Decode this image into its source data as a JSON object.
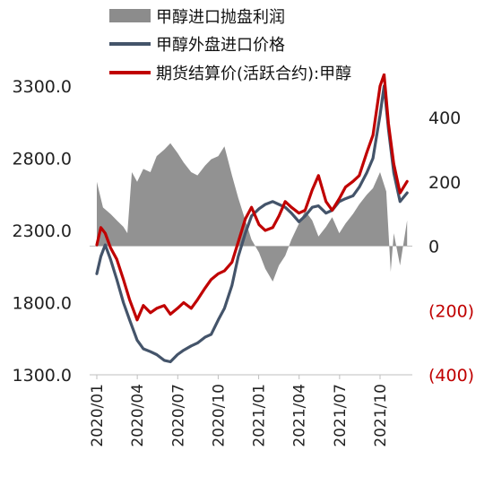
{
  "chart_data": {
    "type": "line",
    "title": "",
    "legend": {
      "position": "top",
      "entries": [
        "甲醇进口抛盘利润",
        "甲醇外盘进口价格",
        "期货结算价(活跃合约):甲醇"
      ]
    },
    "x_ticks": [
      "2020/01",
      "2020/04",
      "2020/07",
      "2020/10",
      "2021/01",
      "2021/04",
      "2021/07",
      "2021/10"
    ],
    "y_left": {
      "ticks": [
        "3300.0",
        "2800.0",
        "2300.0",
        "1800.0",
        "1300.0"
      ],
      "range": [
        1300,
        3300
      ]
    },
    "y_right": {
      "ticks": [
        {
          "label": "400",
          "value": 400,
          "negative": false
        },
        {
          "label": "200",
          "value": 200,
          "negative": false
        },
        {
          "label": "0",
          "value": 0,
          "negative": false
        },
        {
          "label": "(200)",
          "value": -200,
          "negative": true
        },
        {
          "label": "(400)",
          "value": -400,
          "negative": true
        }
      ],
      "range": [
        -400,
        500
      ]
    },
    "series": [
      {
        "name": "甲醇进口抛盘利润",
        "kind": "area",
        "axis": "right",
        "color": "#8c8c8c",
        "points": [
          [
            "2020-01-01",
            200
          ],
          [
            "2020-01-15",
            120
          ],
          [
            "2020-02-01",
            100
          ],
          [
            "2020-02-15",
            80
          ],
          [
            "2020-03-01",
            60
          ],
          [
            "2020-03-10",
            40
          ],
          [
            "2020-03-20",
            230
          ],
          [
            "2020-04-01",
            200
          ],
          [
            "2020-04-15",
            240
          ],
          [
            "2020-05-01",
            230
          ],
          [
            "2020-05-15",
            280
          ],
          [
            "2020-06-01",
            300
          ],
          [
            "2020-06-15",
            320
          ],
          [
            "2020-07-01",
            290
          ],
          [
            "2020-07-15",
            260
          ],
          [
            "2020-08-01",
            230
          ],
          [
            "2020-08-15",
            220
          ],
          [
            "2020-09-01",
            250
          ],
          [
            "2020-09-15",
            270
          ],
          [
            "2020-10-01",
            280
          ],
          [
            "2020-10-15",
            310
          ],
          [
            "2020-11-01",
            220
          ],
          [
            "2020-11-15",
            150
          ],
          [
            "2020-12-01",
            80
          ],
          [
            "2020-12-15",
            20
          ],
          [
            "2021-01-01",
            -20
          ],
          [
            "2021-01-15",
            -70
          ],
          [
            "2021-02-01",
            -110
          ],
          [
            "2021-02-15",
            -60
          ],
          [
            "2021-03-01",
            -30
          ],
          [
            "2021-03-15",
            20
          ],
          [
            "2021-04-01",
            70
          ],
          [
            "2021-04-15",
            110
          ],
          [
            "2021-05-01",
            80
          ],
          [
            "2021-05-15",
            30
          ],
          [
            "2021-06-01",
            60
          ],
          [
            "2021-06-15",
            90
          ],
          [
            "2021-07-01",
            40
          ],
          [
            "2021-07-15",
            70
          ],
          [
            "2021-08-01",
            100
          ],
          [
            "2021-08-15",
            130
          ],
          [
            "2021-09-01",
            160
          ],
          [
            "2021-09-15",
            180
          ],
          [
            "2021-10-01",
            230
          ],
          [
            "2021-10-15",
            170
          ],
          [
            "2021-10-25",
            -80
          ],
          [
            "2021-11-01",
            40
          ],
          [
            "2021-11-15",
            -60
          ],
          [
            "2021-12-01",
            80
          ]
        ]
      },
      {
        "name": "甲醇外盘进口价格",
        "kind": "line",
        "axis": "left",
        "color": "#44546a",
        "points": [
          [
            "2020-01-01",
            2000
          ],
          [
            "2020-01-10",
            2120
          ],
          [
            "2020-01-20",
            2200
          ],
          [
            "2020-02-01",
            2100
          ],
          [
            "2020-02-15",
            1960
          ],
          [
            "2020-03-01",
            1800
          ],
          [
            "2020-03-15",
            1680
          ],
          [
            "2020-04-01",
            1540
          ],
          [
            "2020-04-15",
            1480
          ],
          [
            "2020-05-01",
            1460
          ],
          [
            "2020-05-15",
            1440
          ],
          [
            "2020-06-01",
            1400
          ],
          [
            "2020-06-15",
            1390
          ],
          [
            "2020-07-01",
            1440
          ],
          [
            "2020-07-15",
            1470
          ],
          [
            "2020-08-01",
            1500
          ],
          [
            "2020-08-15",
            1520
          ],
          [
            "2020-09-01",
            1560
          ],
          [
            "2020-09-15",
            1580
          ],
          [
            "2020-10-01",
            1680
          ],
          [
            "2020-10-15",
            1760
          ],
          [
            "2020-11-01",
            1920
          ],
          [
            "2020-11-15",
            2120
          ],
          [
            "2020-12-01",
            2280
          ],
          [
            "2020-12-15",
            2400
          ],
          [
            "2021-01-01",
            2450
          ],
          [
            "2021-01-15",
            2480
          ],
          [
            "2021-02-01",
            2500
          ],
          [
            "2021-02-15",
            2480
          ],
          [
            "2021-03-01",
            2460
          ],
          [
            "2021-03-15",
            2420
          ],
          [
            "2021-04-01",
            2360
          ],
          [
            "2021-04-15",
            2400
          ],
          [
            "2021-05-01",
            2460
          ],
          [
            "2021-05-15",
            2470
          ],
          [
            "2021-06-01",
            2420
          ],
          [
            "2021-06-15",
            2440
          ],
          [
            "2021-07-01",
            2500
          ],
          [
            "2021-07-15",
            2520
          ],
          [
            "2021-08-01",
            2540
          ],
          [
            "2021-08-15",
            2600
          ],
          [
            "2021-09-01",
            2700
          ],
          [
            "2021-09-15",
            2800
          ],
          [
            "2021-10-01",
            3100
          ],
          [
            "2021-10-10",
            3300
          ],
          [
            "2021-10-20",
            3000
          ],
          [
            "2021-11-01",
            2700
          ],
          [
            "2021-11-15",
            2500
          ],
          [
            "2021-12-01",
            2560
          ]
        ]
      },
      {
        "name": "期货结算价(活跃合约):甲醇",
        "kind": "line",
        "axis": "left",
        "color": "#c00000",
        "points": [
          [
            "2020-01-01",
            2200
          ],
          [
            "2020-01-10",
            2320
          ],
          [
            "2020-01-20",
            2280
          ],
          [
            "2020-02-01",
            2180
          ],
          [
            "2020-02-15",
            2100
          ],
          [
            "2020-03-01",
            1960
          ],
          [
            "2020-03-15",
            1820
          ],
          [
            "2020-04-01",
            1680
          ],
          [
            "2020-04-15",
            1780
          ],
          [
            "2020-05-01",
            1730
          ],
          [
            "2020-05-15",
            1760
          ],
          [
            "2020-06-01",
            1780
          ],
          [
            "2020-06-15",
            1720
          ],
          [
            "2020-07-01",
            1760
          ],
          [
            "2020-07-15",
            1800
          ],
          [
            "2020-08-01",
            1760
          ],
          [
            "2020-08-15",
            1820
          ],
          [
            "2020-09-01",
            1900
          ],
          [
            "2020-09-15",
            1960
          ],
          [
            "2020-10-01",
            2000
          ],
          [
            "2020-10-15",
            2020
          ],
          [
            "2020-11-01",
            2080
          ],
          [
            "2020-11-15",
            2220
          ],
          [
            "2020-12-01",
            2380
          ],
          [
            "2020-12-15",
            2460
          ],
          [
            "2021-01-01",
            2340
          ],
          [
            "2021-01-15",
            2300
          ],
          [
            "2021-02-01",
            2320
          ],
          [
            "2021-02-15",
            2400
          ],
          [
            "2021-03-01",
            2500
          ],
          [
            "2021-03-15",
            2460
          ],
          [
            "2021-04-01",
            2420
          ],
          [
            "2021-04-15",
            2440
          ],
          [
            "2021-05-01",
            2580
          ],
          [
            "2021-05-15",
            2680
          ],
          [
            "2021-06-01",
            2500
          ],
          [
            "2021-06-15",
            2440
          ],
          [
            "2021-07-01",
            2520
          ],
          [
            "2021-07-15",
            2600
          ],
          [
            "2021-08-01",
            2640
          ],
          [
            "2021-08-15",
            2680
          ],
          [
            "2021-09-01",
            2840
          ],
          [
            "2021-09-15",
            2960
          ],
          [
            "2021-10-01",
            3300
          ],
          [
            "2021-10-10",
            3380
          ],
          [
            "2021-10-20",
            3040
          ],
          [
            "2021-11-01",
            2760
          ],
          [
            "2021-11-15",
            2560
          ],
          [
            "2021-12-01",
            2640
          ]
        ]
      }
    ]
  }
}
